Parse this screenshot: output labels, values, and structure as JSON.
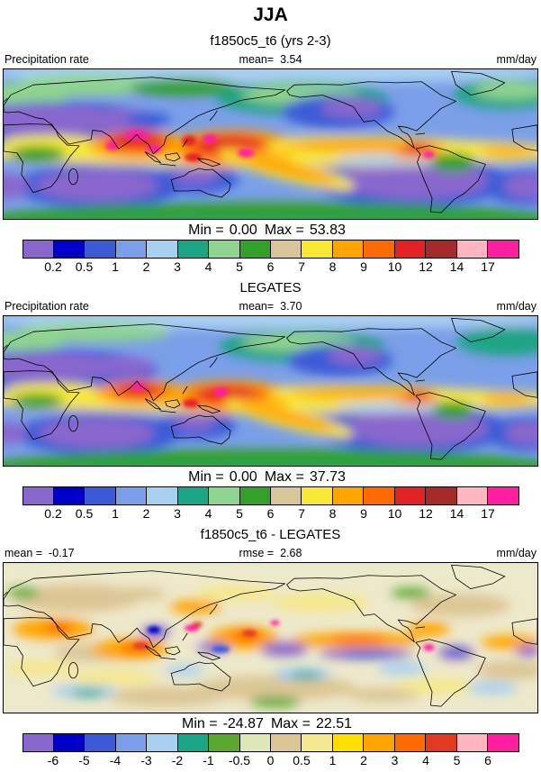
{
  "title": "JJA",
  "panels": [
    {
      "subtitle": "f1850c5_t6 (yrs 2-3)",
      "header": {
        "left_label": "Precipitation rate",
        "left_value": "",
        "center_label": "mean=",
        "center_value": "3.54",
        "right_label": "mm/day"
      },
      "min_label": "Min =",
      "min_value": "0.00",
      "max_label": "Max =",
      "max_value": "53.83",
      "colorbar": {
        "colors": [
          "#8968cd",
          "#0000c8",
          "#3b5bd6",
          "#7b9fe8",
          "#a8d0f0",
          "#1aa584",
          "#8fd48f",
          "#33a02c",
          "#d9c79b",
          "#f8e835",
          "#ffa500",
          "#ff6a00",
          "#e32226",
          "#a52a2a",
          "#ffb6c1",
          "#ff1ea0"
        ],
        "ticks": [
          "0.2",
          "0.5",
          "1",
          "2",
          "3",
          "4",
          "5",
          "6",
          "7",
          "8",
          "9",
          "10",
          "12",
          "14",
          "17"
        ]
      }
    },
    {
      "subtitle": "LEGATES",
      "header": {
        "left_label": "Precipitation rate",
        "left_value": "",
        "center_label": "mean=",
        "center_value": "3.70",
        "right_label": "mm/day"
      },
      "min_label": "Min =",
      "min_value": "0.00",
      "max_label": "Max =",
      "max_value": "37.73",
      "colorbar": {
        "colors": [
          "#8968cd",
          "#0000c8",
          "#3b5bd6",
          "#7b9fe8",
          "#a8d0f0",
          "#1aa584",
          "#8fd48f",
          "#33a02c",
          "#d9c79b",
          "#f8e835",
          "#ffa500",
          "#ff6a00",
          "#e32226",
          "#a52a2a",
          "#ffb6c1",
          "#ff1ea0"
        ],
        "ticks": [
          "0.2",
          "0.5",
          "1",
          "2",
          "3",
          "4",
          "5",
          "6",
          "7",
          "8",
          "9",
          "10",
          "12",
          "14",
          "17"
        ]
      }
    },
    {
      "subtitle": "f1850c5_t6 - LEGATES",
      "header": {
        "left_label": "mean =",
        "left_value": "-0.17",
        "center_label": "rmse =",
        "center_value": "2.68",
        "right_label": "mm/day"
      },
      "min_label": "Min =",
      "min_value": "-24.87",
      "max_label": "Max =",
      "max_value": "22.51",
      "colorbar": {
        "colors": [
          "#8968cd",
          "#0000c8",
          "#3b5bd6",
          "#7b9fe8",
          "#a8d0f0",
          "#1aa584",
          "#5aa832",
          "#dfe6b8",
          "#dcc694",
          "#f5e88e",
          "#ffe000",
          "#ffa500",
          "#ff6a00",
          "#e03a21",
          "#ffb6c1",
          "#ff1ea0"
        ],
        "ticks": [
          "-6",
          "-5",
          "-4",
          "-3",
          "-2",
          "-1",
          "-0.5",
          "0",
          "0.5",
          "1",
          "2",
          "3",
          "4",
          "5",
          "6"
        ]
      }
    }
  ],
  "chart_data": [
    {
      "type": "heatmap",
      "subtype": "global lat-lon precipitation map",
      "season": "JJA",
      "title": "f1850c5_t6 (yrs 2-3)",
      "variable": "Precipitation rate",
      "units": "mm/day",
      "mean": 3.54,
      "min": 0.0,
      "max": 53.83,
      "contour_levels": [
        0.2,
        0.5,
        1,
        2,
        3,
        4,
        5,
        6,
        7,
        8,
        9,
        10,
        12,
        14,
        17
      ],
      "palette": [
        "#8968cd",
        "#0000c8",
        "#3b5bd6",
        "#7b9fe8",
        "#a8d0f0",
        "#1aa584",
        "#8fd48f",
        "#33a02c",
        "#d9c79b",
        "#f8e835",
        "#ffa500",
        "#ff6a00",
        "#e32226",
        "#a52a2a",
        "#ffb6c1",
        "#ff1ea0"
      ],
      "legend_position": "bottom"
    },
    {
      "type": "heatmap",
      "subtype": "global lat-lon precipitation map",
      "season": "JJA",
      "title": "LEGATES",
      "variable": "Precipitation rate",
      "units": "mm/day",
      "mean": 3.7,
      "min": 0.0,
      "max": 37.73,
      "contour_levels": [
        0.2,
        0.5,
        1,
        2,
        3,
        4,
        5,
        6,
        7,
        8,
        9,
        10,
        12,
        14,
        17
      ],
      "palette": [
        "#8968cd",
        "#0000c8",
        "#3b5bd6",
        "#7b9fe8",
        "#a8d0f0",
        "#1aa584",
        "#8fd48f",
        "#33a02c",
        "#d9c79b",
        "#f8e835",
        "#ffa500",
        "#ff6a00",
        "#e32226",
        "#a52a2a",
        "#ffb6c1",
        "#ff1ea0"
      ],
      "legend_position": "bottom"
    },
    {
      "type": "heatmap",
      "subtype": "global lat-lon difference map",
      "season": "JJA",
      "title": "f1850c5_t6 - LEGATES",
      "variable": "Precipitation rate difference",
      "units": "mm/day",
      "mean": -0.17,
      "rmse": 2.68,
      "min": -24.87,
      "max": 22.51,
      "contour_levels": [
        -6,
        -5,
        -4,
        -3,
        -2,
        -1,
        -0.5,
        0,
        0.5,
        1,
        2,
        3,
        4,
        5,
        6
      ],
      "palette": [
        "#8968cd",
        "#0000c8",
        "#3b5bd6",
        "#7b9fe8",
        "#a8d0f0",
        "#1aa584",
        "#5aa832",
        "#dfe6b8",
        "#dcc694",
        "#f5e88e",
        "#ffe000",
        "#ffa500",
        "#ff6a00",
        "#e03a21",
        "#ffb6c1",
        "#ff1ea0"
      ],
      "legend_position": "bottom"
    }
  ]
}
